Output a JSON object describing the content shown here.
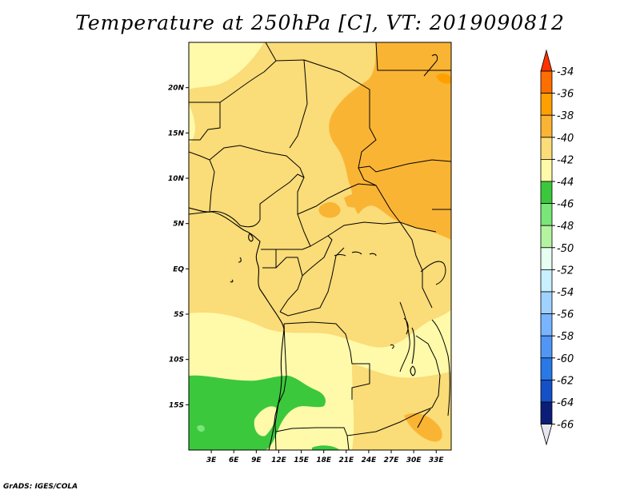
{
  "title": "Temperature at 250hPa [C], VT: 2019090812",
  "credit": "GrADS: IGES/COLA",
  "map": {
    "lon_range": [
      0,
      35
    ],
    "lat_range": [
      -20,
      25
    ],
    "y_ticks": [
      {
        "lat": 20,
        "label": "20N"
      },
      {
        "lat": 15,
        "label": "15N"
      },
      {
        "lat": 10,
        "label": "10N"
      },
      {
        "lat": 5,
        "label": "5N"
      },
      {
        "lat": 0,
        "label": "EQ"
      },
      {
        "lat": -5,
        "label": "5S"
      },
      {
        "lat": -10,
        "label": "10S"
      },
      {
        "lat": -15,
        "label": "15S"
      }
    ],
    "x_ticks": [
      {
        "lon": 3,
        "label": "3E"
      },
      {
        "lon": 6,
        "label": "6E"
      },
      {
        "lon": 9,
        "label": "9E"
      },
      {
        "lon": 12,
        "label": "12E"
      },
      {
        "lon": 15,
        "label": "15E"
      },
      {
        "lon": 18,
        "label": "18E"
      },
      {
        "lon": 21,
        "label": "21E"
      },
      {
        "lon": 24,
        "label": "24E"
      },
      {
        "lon": 27,
        "label": "27E"
      },
      {
        "lon": 30,
        "label": "30E"
      },
      {
        "lon": 33,
        "label": "33E"
      }
    ]
  },
  "colorbar": {
    "labels": [
      "-34",
      "-36",
      "-38",
      "-40",
      "-42",
      "-44",
      "-46",
      "-48",
      "-50",
      "-52",
      "-54",
      "-56",
      "-58",
      "-60",
      "-62",
      "-64",
      "-66"
    ],
    "colors": [
      "#ff3200",
      "#ff6e00",
      "#ffa000",
      "#fab434",
      "#fadc78",
      "#fffaaa",
      "#3cc83c",
      "#78e678",
      "#b4f4a0",
      "#e6fff0",
      "#c8f0ff",
      "#a0d2ff",
      "#78b4ff",
      "#5096f5",
      "#2878e6",
      "#1450c8",
      "#0a1e78",
      "#e6e6f0"
    ]
  },
  "legend_colors": {
    "c38": "#fab434",
    "c40": "#fadc78",
    "c42": "#fffaaa",
    "c44": "#3cc83c",
    "c46": "#78e678"
  }
}
